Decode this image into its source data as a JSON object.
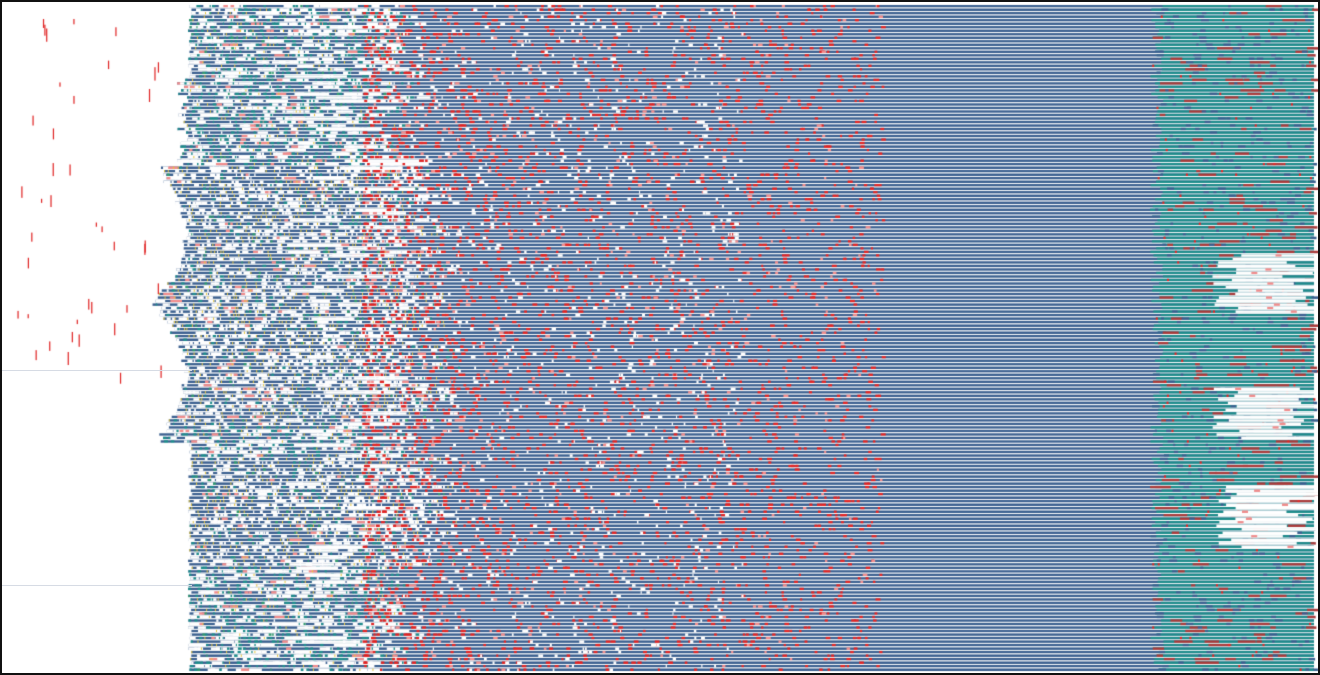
{
  "view": {
    "kind": "multiple-sequence-alignment overview",
    "labels_shown": false,
    "row_count": 190,
    "alignment_columns": 1400
  },
  "palette": {
    "aligned": "#3a5f8f",
    "conserved_teal": "#1c8b8a",
    "variable_green": "#2f9a6c",
    "insertion_yellow": "#e3c43c",
    "mismatch_red": "#e02323",
    "low_confidence_pink": "#f08c8c",
    "dark_red": "#a83a3a",
    "gap_white": "#ffffff",
    "frame": "#111111"
  },
  "regions": [
    {
      "name": "ragged-start",
      "description_class": "variable"
    },
    {
      "name": "sparse-variable-block",
      "description_class": "mixed"
    },
    {
      "name": "dense-mismatch-scatter",
      "description_class": "mismatch"
    },
    {
      "name": "conserved-core",
      "description_class": "aligned"
    },
    {
      "name": "teal-tail",
      "description_class": "conserved"
    }
  ]
}
